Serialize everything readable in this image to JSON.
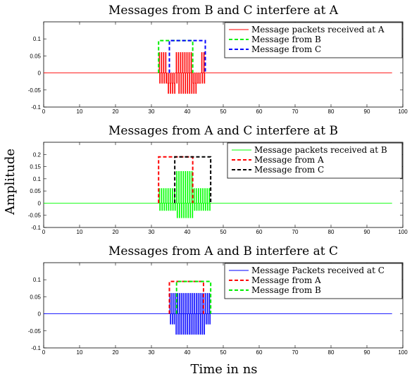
{
  "figure": {
    "ylabel": "Amplitude",
    "xlabel": "Time in ns"
  },
  "chart_data": [
    {
      "type": "line",
      "title": "Messages from B and C interfere at A",
      "xlim": [
        0,
        100
      ],
      "ylim": [
        -0.1,
        0.15
      ],
      "xticks": [
        0,
        10,
        20,
        30,
        40,
        50,
        60,
        70,
        80,
        90,
        100
      ],
      "yticks": [
        -0.1,
        -0.05,
        0,
        0.05,
        0.1
      ],
      "grid": false,
      "legend_position": "top-right",
      "series": [
        {
          "name": "Message packets received at A",
          "style": "solid",
          "color": "#ff0000",
          "x_range": [
            0,
            97
          ],
          "pulses": [
            {
              "start": 32,
              "end": 45,
              "count": 22,
              "levels": [
                0.06,
                0.06,
                0.06,
                0.06,
                -0.03,
                -0.03,
                -0.03,
                -0.03,
                0.06,
                0.06,
                0.06,
                0.06,
                0.06,
                0.06,
                0.06,
                0.06,
                -0.03,
                -0.03,
                -0.03,
                -0.03,
                0.06,
                0.06
              ],
              "neg_levels": [
                -0.03,
                -0.03,
                -0.03,
                -0.03,
                -0.06,
                -0.06,
                -0.06,
                -0.06,
                -0.03,
                -0.06,
                -0.06,
                -0.06,
                -0.06,
                -0.06,
                -0.06,
                -0.06,
                -0.06,
                -0.06,
                -0.03,
                -0.03,
                -0.03,
                -0.03
              ]
            }
          ]
        },
        {
          "name": "Message from B",
          "style": "dashed",
          "color": "#00ee00",
          "rect": {
            "x0": 32,
            "x1": 41.5,
            "y": 0.095
          }
        },
        {
          "name": "Message from C",
          "style": "dashed",
          "color": "#0000ff",
          "rect": {
            "x0": 35,
            "x1": 45,
            "y": 0.095
          }
        }
      ]
    },
    {
      "type": "line",
      "title": "Messages from A and C interfere at B",
      "xlim": [
        0,
        100
      ],
      "ylim": [
        -0.1,
        0.25
      ],
      "xticks": [
        0,
        10,
        20,
        30,
        40,
        50,
        60,
        70,
        80,
        90,
        100
      ],
      "yticks": [
        -0.1,
        -0.05,
        0,
        0.05,
        0.1,
        0.15,
        0.2
      ],
      "grid": false,
      "legend_position": "top-right",
      "series": [
        {
          "name": "Message packets received at B",
          "style": "solid",
          "color": "#00ff00",
          "x_range": [
            0,
            97
          ],
          "pulses": [
            {
              "start": 32,
              "end": 46.5,
              "count": 24,
              "levels": [
                0.06,
                0.06,
                0.06,
                0.06,
                0.06,
                0.06,
                0.06,
                0.06,
                0.13,
                0.13,
                0.13,
                0.13,
                0.13,
                0.13,
                0.13,
                0.13,
                0.06,
                0.06,
                0.06,
                0.06,
                0.06,
                0.06,
                0.06,
                0.06
              ],
              "neg_levels": [
                -0.03,
                -0.03,
                -0.03,
                -0.03,
                -0.03,
                -0.03,
                -0.03,
                -0.03,
                -0.06,
                -0.06,
                -0.06,
                -0.06,
                -0.06,
                -0.06,
                -0.06,
                -0.06,
                -0.03,
                -0.03,
                -0.03,
                -0.03,
                -0.03,
                -0.03,
                -0.03,
                -0.03
              ]
            }
          ]
        },
        {
          "name": "Message from A",
          "style": "dashed",
          "color": "#ff0000",
          "rect": {
            "x0": 32,
            "x1": 41.5,
            "y": 0.19
          }
        },
        {
          "name": "Message from C",
          "style": "dashed",
          "color": "#000000",
          "rect": {
            "x0": 36.5,
            "x1": 46.5,
            "y": 0.19
          }
        }
      ]
    },
    {
      "type": "line",
      "title": "Messages from A and B interfere at C",
      "xlim": [
        0,
        100
      ],
      "ylim": [
        -0.1,
        0.15
      ],
      "xticks": [
        0,
        10,
        20,
        30,
        40,
        50,
        60,
        70,
        80,
        90,
        100
      ],
      "yticks": [
        -0.1,
        -0.05,
        0,
        0.05,
        0.1
      ],
      "grid": false,
      "legend_position": "top-right",
      "series": [
        {
          "name": "Message Packets received at C",
          "style": "solid",
          "color": "#0000ff",
          "x_range": [
            0,
            97
          ],
          "pulses": [
            {
              "start": 35,
              "end": 46.5,
              "count": 22,
              "levels": [
                0.06,
                0.06,
                0.06,
                0.06,
                0.06,
                0.06,
                0.06,
                0.06,
                0.06,
                0.06,
                0.06,
                0.06,
                0.06,
                0.06,
                0.06,
                0.06,
                0.06,
                0.06,
                0.06,
                0.06,
                0.06,
                0.06
              ],
              "neg_levels": [
                -0.03,
                -0.03,
                -0.03,
                -0.06,
                -0.06,
                -0.06,
                -0.06,
                -0.06,
                -0.06,
                -0.06,
                -0.06,
                -0.06,
                -0.06,
                -0.06,
                -0.06,
                -0.06,
                -0.06,
                -0.06,
                -0.06,
                -0.03,
                -0.03,
                -0.03
              ]
            }
          ]
        },
        {
          "name": "Message from A",
          "style": "dashed",
          "color": "#ff0000",
          "rect": {
            "x0": 35,
            "x1": 44.5,
            "y": 0.095
          }
        },
        {
          "name": "Message from B",
          "style": "dashed",
          "color": "#00ee00",
          "rect": {
            "x0": 37,
            "x1": 46.5,
            "y": 0.095
          }
        }
      ]
    }
  ]
}
